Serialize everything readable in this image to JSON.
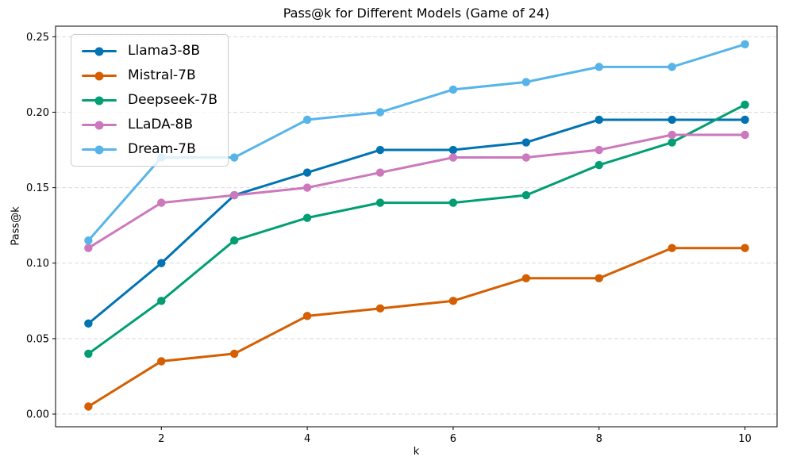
{
  "chart_data": {
    "type": "line",
    "title": "Pass@k for Different Models (Game of 24)",
    "xlabel": "k",
    "ylabel": "Pass@k",
    "x": [
      1,
      2,
      3,
      4,
      5,
      6,
      7,
      8,
      9,
      10
    ],
    "series": [
      {
        "name": "Llama3-8B",
        "color": "#0173b2",
        "values": [
          0.06,
          0.1,
          0.145,
          0.16,
          0.175,
          0.175,
          0.18,
          0.195,
          0.195,
          0.195
        ]
      },
      {
        "name": "Mistral-7B",
        "color": "#d55e00",
        "values": [
          0.005,
          0.035,
          0.04,
          0.065,
          0.07,
          0.075,
          0.09,
          0.09,
          0.11,
          0.11
        ]
      },
      {
        "name": "Deepseek-7B",
        "color": "#029e73",
        "values": [
          0.04,
          0.075,
          0.115,
          0.13,
          0.14,
          0.14,
          0.145,
          0.165,
          0.18,
          0.205
        ]
      },
      {
        "name": "LLaDA-8B",
        "color": "#cc78bc",
        "values": [
          0.11,
          0.14,
          0.145,
          0.15,
          0.16,
          0.17,
          0.17,
          0.175,
          0.185,
          0.185
        ]
      },
      {
        "name": "Dream-7B",
        "color": "#56b4e9",
        "values": [
          0.115,
          0.17,
          0.17,
          0.195,
          0.2,
          0.215,
          0.22,
          0.23,
          0.23,
          0.245
        ]
      }
    ],
    "xticks": [
      2,
      4,
      6,
      8,
      10
    ],
    "yticks": [
      0.0,
      0.05,
      0.1,
      0.15,
      0.2,
      0.25
    ],
    "xlim": [
      0.55,
      10.44
    ],
    "ylim": [
      -0.0084,
      0.257
    ],
    "grid": "horizontal-dashed",
    "grid_color": "#d9d9d9",
    "spine_color": "#000000",
    "legend_position": "upper-left",
    "marker": "circle"
  }
}
